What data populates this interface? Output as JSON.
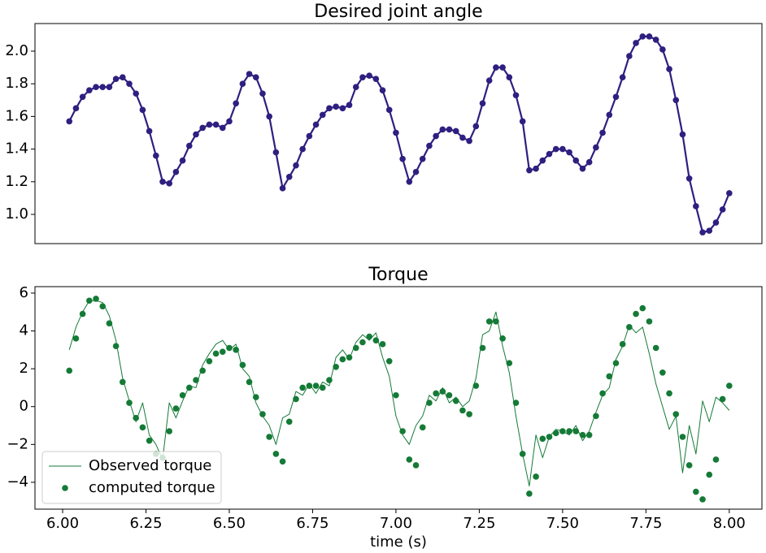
{
  "chart_data": [
    {
      "type": "line",
      "title": "Desired joint angle",
      "color": "#2e1f80",
      "marker": true,
      "xlim": [
        5.917,
        8.098
      ],
      "ylim": [
        0.821,
        2.169
      ],
      "yticks": [
        {
          "value": 1,
          "label": "1.0"
        },
        1.2,
        1.4,
        1.6,
        1.8,
        {
          "value": 2,
          "label": "2.0"
        }
      ],
      "x": [
        6.02,
        6.04,
        6.06,
        6.08,
        6.1,
        6.12,
        6.14,
        6.16,
        6.18,
        6.2,
        6.22,
        6.24,
        6.26,
        6.28,
        6.3,
        6.32,
        6.34,
        6.36,
        6.38,
        6.4,
        6.42,
        6.44,
        6.46,
        6.48,
        6.5,
        6.52,
        6.54,
        6.56,
        6.58,
        6.6,
        6.62,
        6.64,
        6.66,
        6.68,
        6.7,
        6.72,
        6.74,
        6.76,
        6.78,
        6.8,
        6.82,
        6.84,
        6.86,
        6.88,
        6.9,
        6.92,
        6.94,
        6.96,
        6.98,
        7.0,
        7.02,
        7.04,
        7.06,
        7.08,
        7.1,
        7.12,
        7.14,
        7.16,
        7.18,
        7.2,
        7.22,
        7.24,
        7.26,
        7.28,
        7.3,
        7.32,
        7.34,
        7.36,
        7.38,
        7.4,
        7.42,
        7.44,
        7.46,
        7.48,
        7.5,
        7.52,
        7.54,
        7.56,
        7.58,
        7.6,
        7.62,
        7.64,
        7.66,
        7.68,
        7.7,
        7.72,
        7.74,
        7.76,
        7.78,
        7.8,
        7.82,
        7.84,
        7.86,
        7.88,
        7.9,
        7.92,
        7.94,
        7.96,
        7.98,
        8.0
      ],
      "values": [
        1.57,
        1.65,
        1.72,
        1.76,
        1.78,
        1.78,
        1.78,
        1.83,
        1.84,
        1.8,
        1.74,
        1.64,
        1.51,
        1.36,
        1.2,
        1.19,
        1.26,
        1.33,
        1.42,
        1.49,
        1.53,
        1.55,
        1.55,
        1.53,
        1.57,
        1.68,
        1.8,
        1.86,
        1.84,
        1.74,
        1.6,
        1.38,
        1.16,
        1.23,
        1.3,
        1.4,
        1.48,
        1.55,
        1.61,
        1.65,
        1.66,
        1.65,
        1.67,
        1.78,
        1.84,
        1.85,
        1.83,
        1.76,
        1.64,
        1.5,
        1.34,
        1.2,
        1.26,
        1.34,
        1.42,
        1.48,
        1.52,
        1.52,
        1.51,
        1.47,
        1.45,
        1.54,
        1.68,
        1.82,
        1.9,
        1.9,
        1.84,
        1.73,
        1.57,
        1.27,
        1.28,
        1.33,
        1.37,
        1.4,
        1.4,
        1.38,
        1.33,
        1.28,
        1.32,
        1.41,
        1.5,
        1.61,
        1.72,
        1.84,
        1.97,
        2.05,
        2.09,
        2.09,
        2.07,
        2.01,
        1.89,
        1.7,
        1.49,
        1.22,
        1.05,
        0.89,
        0.9,
        0.95,
        1.03,
        1.13
      ]
    },
    {
      "type": "line",
      "title": "Torque",
      "xlabel": "time (s)",
      "legend": "lower left",
      "xlim": [
        5.917,
        8.098
      ],
      "ylim": [
        -5.42,
        6.34
      ],
      "xticks": [
        {
          "value": 6,
          "label": "6.00"
        },
        6.25,
        {
          "value": 6.5,
          "label": "6.50"
        },
        6.75,
        {
          "value": 7,
          "label": "7.00"
        },
        7.25,
        {
          "value": 7.5,
          "label": "7.50"
        },
        7.75,
        {
          "value": 8,
          "label": "8.00"
        }
      ],
      "yticks": [
        {
          "value": -4,
          "label": "−4"
        },
        {
          "value": -2,
          "label": "−2"
        },
        0,
        2,
        4,
        6
      ],
      "x": [
        6.02,
        6.04,
        6.06,
        6.08,
        6.1,
        6.12,
        6.14,
        6.16,
        6.18,
        6.2,
        6.22,
        6.24,
        6.26,
        6.28,
        6.3,
        6.32,
        6.34,
        6.36,
        6.38,
        6.4,
        6.42,
        6.44,
        6.46,
        6.48,
        6.5,
        6.52,
        6.54,
        6.56,
        6.58,
        6.6,
        6.62,
        6.64,
        6.66,
        6.68,
        6.7,
        6.72,
        6.74,
        6.76,
        6.78,
        6.8,
        6.82,
        6.84,
        6.86,
        6.88,
        6.9,
        6.92,
        6.94,
        6.96,
        6.98,
        7.0,
        7.02,
        7.04,
        7.06,
        7.08,
        7.1,
        7.12,
        7.14,
        7.16,
        7.18,
        7.2,
        7.22,
        7.24,
        7.26,
        7.28,
        7.3,
        7.32,
        7.34,
        7.36,
        7.38,
        7.4,
        7.42,
        7.44,
        7.46,
        7.48,
        7.5,
        7.52,
        7.54,
        7.56,
        7.58,
        7.6,
        7.62,
        7.64,
        7.66,
        7.68,
        7.7,
        7.72,
        7.74,
        7.76,
        7.78,
        7.8,
        7.82,
        7.84,
        7.86,
        7.88,
        7.9,
        7.92,
        7.94,
        7.96,
        7.98,
        8.0
      ],
      "series": [
        {
          "name": "Observed torque",
          "color": "#147a36",
          "style": "line",
          "values": [
            3.0,
            4.2,
            5.0,
            5.6,
            5.6,
            5.5,
            4.8,
            3.5,
            1.5,
            0.3,
            -0.8,
            0.2,
            -1.5,
            -2.0,
            -2.8,
            0.2,
            -0.6,
            0.3,
            1.1,
            1.0,
            2.2,
            2.8,
            3.3,
            3.5,
            3.0,
            3.3,
            2.0,
            1.6,
            0.2,
            -0.5,
            -1.0,
            -2.0,
            -0.6,
            -0.4,
            0.8,
            0.6,
            1.2,
            0.7,
            1.3,
            1.1,
            2.6,
            3.0,
            2.5,
            3.4,
            3.8,
            3.5,
            3.9,
            2.6,
            1.6,
            -0.5,
            -1.5,
            -2.0,
            -1.0,
            -0.5,
            0.6,
            0.3,
            1.0,
            0.2,
            0.5,
            0.0,
            0.3,
            1.5,
            3.8,
            4.0,
            5.0,
            3.2,
            1.8,
            -0.5,
            -2.5,
            -4.2,
            -1.5,
            -2.7,
            -1.6,
            -1.2,
            -1.3,
            -1.5,
            -1.0,
            -1.8,
            -1.3,
            -0.3,
            0.6,
            1.0,
            2.5,
            3.2,
            4.3,
            3.9,
            4.2,
            2.8,
            1.2,
            0.0,
            -1.2,
            -0.5,
            -3.5,
            -1.0,
            -2.5,
            0.3,
            -0.8,
            0.5,
            0.2,
            -0.2
          ]
        },
        {
          "name": "computed torque",
          "color": "#147a36",
          "style": "scatter",
          "values": [
            1.9,
            3.6,
            4.9,
            5.6,
            5.7,
            5.3,
            4.4,
            3.2,
            1.3,
            0.2,
            -0.6,
            -1.1,
            -1.8,
            -2.5,
            -2.7,
            -1.3,
            -0.1,
            0.6,
            1.0,
            1.4,
            1.9,
            2.4,
            2.8,
            2.9,
            3.1,
            3.0,
            2.2,
            1.3,
            0.5,
            -0.4,
            -1.6,
            -2.5,
            -2.9,
            -0.8,
            0.4,
            1.0,
            1.1,
            1.1,
            1.0,
            1.4,
            2.1,
            2.5,
            2.6,
            3.1,
            3.4,
            3.7,
            3.5,
            3.3,
            2.4,
            0.6,
            -1.3,
            -2.8,
            -3.1,
            -1.1,
            0.2,
            0.7,
            0.8,
            0.6,
            0.3,
            -0.2,
            -0.4,
            1.1,
            3.1,
            4.5,
            4.5,
            3.6,
            2.3,
            0.2,
            -2.5,
            -4.6,
            -3.7,
            -1.7,
            -1.6,
            -1.4,
            -1.3,
            -1.3,
            -1.3,
            -1.5,
            -1.5,
            -0.5,
            0.7,
            1.6,
            2.3,
            3.3,
            4.2,
            4.9,
            5.2,
            4.5,
            3.1,
            1.8,
            0.7,
            -0.4,
            -1.6,
            -3.1,
            -4.5,
            -4.9,
            -3.6,
            -2.8,
            0.4,
            1.1
          ]
        }
      ]
    }
  ]
}
